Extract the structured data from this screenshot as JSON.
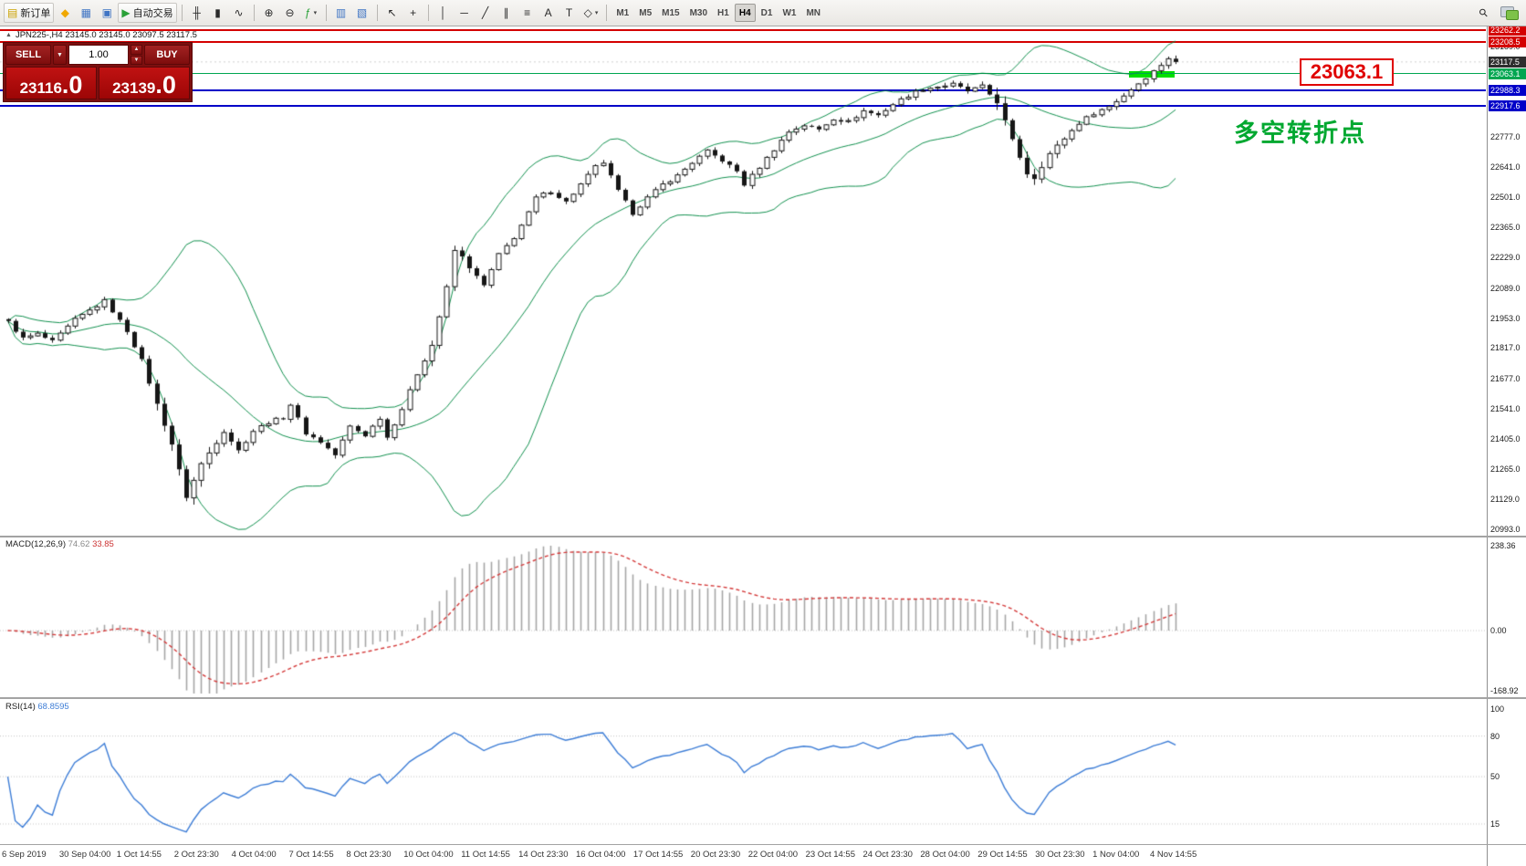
{
  "toolbar": {
    "new_order_label": "新订单",
    "autotrading_label": "自动交易",
    "active_timeframe": "H4",
    "timeframes": [
      "M1",
      "M5",
      "M15",
      "M30",
      "H1",
      "H4",
      "D1",
      "W1",
      "MN"
    ],
    "buttons": [
      {
        "name": "new-order-button",
        "icon": "new-order-icon",
        "glyph": "▤",
        "glyph_color": "#caa200",
        "label": "新订单"
      },
      {
        "name": "mql5-community-button",
        "icon": "mql5-icon",
        "glyph": "◆",
        "glyph_color": "#f0a800"
      },
      {
        "name": "market-watch-button",
        "icon": "market-watch-icon",
        "glyph": "▦",
        "glyph_color": "#3f74c4"
      },
      {
        "name": "data-window-button",
        "icon": "data-window-icon",
        "glyph": "▣",
        "glyph_color": "#3f74c4"
      },
      {
        "name": "autotrading-button",
        "icon": "autotrading-play-icon",
        "glyph": "▶",
        "glyph_color": "#2aa038",
        "label": "自动交易"
      },
      {
        "sep": true
      },
      {
        "name": "bar-chart-button",
        "icon": "bar-chart-icon",
        "glyph": "╫",
        "glyph_color": "#2a2a2a"
      },
      {
        "name": "candlestick-chart-button",
        "icon": "candlestick-icon",
        "glyph": "▮",
        "glyph_color": "#2a2a2a"
      },
      {
        "name": "line-chart-button",
        "icon": "line-chart-icon",
        "glyph": "∿",
        "glyph_color": "#2a2a2a"
      },
      {
        "sep": true
      },
      {
        "name": "zoom-in-button",
        "icon": "zoom-in-icon",
        "glyph": "⊕",
        "glyph_color": "#2a2a2a"
      },
      {
        "name": "zoom-out-button",
        "icon": "zoom-out-icon",
        "glyph": "⊖",
        "glyph_color": "#2a2a2a"
      },
      {
        "name": "indicators-button",
        "icon": "indicators-icon",
        "glyph": "ƒ",
        "glyph_color": "#2aa038",
        "arrow": true
      },
      {
        "sep": true
      },
      {
        "name": "tile-windows-button",
        "icon": "tile-windows-icon",
        "glyph": "▥",
        "glyph_color": "#3f74c4"
      },
      {
        "name": "cascade-windows-button",
        "icon": "cascade-windows-icon",
        "glyph": "▧",
        "glyph_color": "#3f74c4"
      },
      {
        "sep": true
      },
      {
        "name": "cursor-button",
        "icon": "cursor-icon",
        "glyph": "↖",
        "glyph_color": "#2a2a2a"
      },
      {
        "name": "crosshair-button",
        "icon": "crosshair-icon",
        "glyph": "+",
        "glyph_color": "#2a2a2a"
      },
      {
        "sep": true
      },
      {
        "name": "vertical-line-button",
        "icon": "vertical-line-icon",
        "glyph": "│",
        "glyph_color": "#2a2a2a"
      },
      {
        "name": "horizontal-line-button",
        "icon": "horizontal-line-icon",
        "glyph": "─",
        "glyph_color": "#2a2a2a"
      },
      {
        "name": "trendline-button",
        "icon": "trendline-icon",
        "glyph": "╱",
        "glyph_color": "#2a2a2a"
      },
      {
        "name": "channel-button",
        "icon": "channel-icon",
        "glyph": "∥",
        "glyph_color": "#2a2a2a"
      },
      {
        "name": "fibonacci-button",
        "icon": "fibonacci-icon",
        "glyph": "≡",
        "glyph_color": "#2a2a2a"
      },
      {
        "name": "text-button",
        "icon": "text-icon",
        "glyph": "A",
        "glyph_color": "#2a2a2a"
      },
      {
        "name": "label-button",
        "icon": "label-icon",
        "glyph": "T",
        "glyph_color": "#2a2a2a"
      },
      {
        "name": "shapes-button",
        "icon": "shapes-icon",
        "glyph": "◇",
        "glyph_color": "#2a2a2a",
        "arrow": true
      },
      {
        "sep": true
      },
      {
        "tf": "M1"
      },
      {
        "tf": "M5"
      },
      {
        "tf": "M15"
      },
      {
        "tf": "M30"
      },
      {
        "tf": "H1"
      },
      {
        "tf": "H4"
      },
      {
        "tf": "D1"
      },
      {
        "tf": "W1"
      },
      {
        "tf": "MN"
      }
    ],
    "right_buttons": [
      {
        "name": "search-button",
        "icon": "search-icon",
        "glyph": "⚲",
        "glyph_color": "#2a2a2a",
        "rot": true
      },
      {
        "name": "chat-button",
        "icon": "chat-icon",
        "type": "chat"
      }
    ]
  },
  "symbol_header": {
    "text": "JPN225-,H4  23145.0 23145.0 23097.5 23117.5"
  },
  "trade_panel": {
    "sell_label": "SELL",
    "buy_label": "BUY",
    "volume": "1.00",
    "sell_price_main": "23116",
    "sell_price_pips": ".0",
    "buy_price_main": "23139",
    "buy_price_pips": ".0"
  },
  "annotations": {
    "price_callout": "23063.1",
    "callout_color": "#e00000",
    "note_text": "多空转折点",
    "note_color": "#00a830"
  },
  "price_scale": {
    "top_price": 23262.2,
    "bottom_price": 20993.0,
    "labels": [
      {
        "price": 23189.0,
        "text": "23189.0",
        "style": "plain"
      },
      {
        "price": 22777.0,
        "text": "22777.0",
        "style": "plain"
      },
      {
        "price": 22641.0,
        "text": "22641.0",
        "style": "plain"
      },
      {
        "price": 22501.0,
        "text": "22501.0",
        "style": "plain"
      },
      {
        "price": 22365.0,
        "text": "22365.0",
        "style": "plain"
      },
      {
        "price": 22229.0,
        "text": "22229.0",
        "style": "plain"
      },
      {
        "price": 22089.0,
        "text": "22089.0",
        "style": "plain"
      },
      {
        "price": 21953.0,
        "text": "21953.0",
        "style": "plain"
      },
      {
        "price": 21817.0,
        "text": "21817.0",
        "style": "plain"
      },
      {
        "price": 21677.0,
        "text": "21677.0",
        "style": "plain"
      },
      {
        "price": 21541.0,
        "text": "21541.0",
        "style": "plain"
      },
      {
        "price": 21405.0,
        "text": "21405.0",
        "style": "plain"
      },
      {
        "price": 21265.0,
        "text": "21265.0",
        "style": "plain"
      },
      {
        "price": 21129.0,
        "text": "21129.0",
        "style": "plain"
      },
      {
        "price": 20993.0,
        "text": "20993.0",
        "style": "plain"
      },
      {
        "price": 23262.2,
        "text": "23262.2",
        "style": "red"
      },
      {
        "price": 23208.5,
        "text": "23208.5",
        "style": "red"
      },
      {
        "price": 23117.5,
        "text": "23117.5",
        "style": "current"
      },
      {
        "price": 23063.1,
        "text": "23063.1",
        "style": "green"
      },
      {
        "price": 22988.3,
        "text": "22988.3",
        "style": "blue"
      },
      {
        "price": 22917.6,
        "text": "22917.6",
        "style": "blue"
      }
    ]
  },
  "horizontal_lines": [
    {
      "price": 23262.2,
      "color": "#d40000",
      "weight": 2
    },
    {
      "price": 23208.5,
      "color": "#d40000",
      "weight": 2
    },
    {
      "price": 23063.1,
      "color": "#00a651",
      "weight": 1
    },
    {
      "price": 22988.3,
      "color": "#0000c8",
      "weight": 2
    },
    {
      "price": 22917.6,
      "color": "#0000c8",
      "weight": 2
    }
  ],
  "highlight_segment": {
    "price": 23063.1,
    "color": "#00e000"
  },
  "macd_panel": {
    "label": "MACD(12,26,9)",
    "value_main": "74.62",
    "value_signal": "33.85",
    "scale_items": [
      {
        "text": "238.36",
        "value": 238.36
      },
      {
        "text": "0.00",
        "value": 0
      },
      {
        "text": "-168.92",
        "value": -168.92
      }
    ]
  },
  "rsi_panel": {
    "label": "RSI(14)",
    "value": "68.8595",
    "levels": [
      80,
      50,
      15
    ],
    "scale_items": [
      {
        "text": "100",
        "value": 100
      },
      {
        "text": "80",
        "value": 80
      },
      {
        "text": "50",
        "value": 50
      },
      {
        "text": "15",
        "value": 15
      }
    ]
  },
  "time_axis": [
    "6 Sep 2019",
    "30 Sep 04:00",
    "1 Oct 14:55",
    "2 Oct 23:30",
    "4 Oct 04:00",
    "7 Oct 14:55",
    "8 Oct 23:30",
    "10 Oct 04:00",
    "11 Oct 14:55",
    "14 Oct 23:30",
    "16 Oct 04:00",
    "17 Oct 14:55",
    "20 Oct 23:30",
    "22 Oct 04:00",
    "23 Oct 14:55",
    "24 Oct 23:30",
    "28 Oct 04:00",
    "29 Oct 14:55",
    "30 Oct 23:30",
    "1 Nov 04:00",
    "4 Nov 14:55"
  ],
  "colors": {
    "candle": "#161616",
    "bollinger": "#11904e",
    "macd_hist": "#a6a6a6",
    "macd_signal": "#d43b3b",
    "rsi_line": "#3d7dd6",
    "level_dots": "#c4c4c4",
    "current_price_dash": "#cfcfcf"
  },
  "chart_data": {
    "type": "candlestick",
    "symbol": "JPN225-",
    "timeframe": "H4",
    "ohlc_display": {
      "open": 23145.0,
      "high": 23145.0,
      "low": 23097.5,
      "close": 23117.5
    },
    "y_range": [
      20993.0,
      23262.2
    ],
    "candle_count": 158,
    "close_anchors": [
      [
        0,
        21935
      ],
      [
        2,
        21860
      ],
      [
        4,
        21880
      ],
      [
        6,
        21845
      ],
      [
        9,
        21945
      ],
      [
        13,
        22030
      ],
      [
        16,
        21895
      ],
      [
        18,
        21760
      ],
      [
        20,
        21560
      ],
      [
        22,
        21380
      ],
      [
        24,
        21140
      ],
      [
        26,
        21290
      ],
      [
        29,
        21440
      ],
      [
        31,
        21350
      ],
      [
        33,
        21440
      ],
      [
        35,
        21480
      ],
      [
        37,
        21500
      ],
      [
        38,
        21560
      ],
      [
        40,
        21430
      ],
      [
        42,
        21390
      ],
      [
        44,
        21330
      ],
      [
        46,
        21460
      ],
      [
        48,
        21420
      ],
      [
        50,
        21500
      ],
      [
        51,
        21410
      ],
      [
        53,
        21540
      ],
      [
        55,
        21700
      ],
      [
        57,
        21830
      ],
      [
        59,
        22090
      ],
      [
        60,
        22260
      ],
      [
        61,
        22230
      ],
      [
        63,
        22140
      ],
      [
        64,
        22100
      ],
      [
        66,
        22240
      ],
      [
        68,
        22320
      ],
      [
        70,
        22430
      ],
      [
        71,
        22500
      ],
      [
        73,
        22530
      ],
      [
        75,
        22480
      ],
      [
        77,
        22560
      ],
      [
        79,
        22640
      ],
      [
        80,
        22660
      ],
      [
        82,
        22530
      ],
      [
        84,
        22430
      ],
      [
        86,
        22500
      ],
      [
        88,
        22560
      ],
      [
        90,
        22600
      ],
      [
        92,
        22660
      ],
      [
        94,
        22710
      ],
      [
        96,
        22670
      ],
      [
        98,
        22620
      ],
      [
        99,
        22560
      ],
      [
        101,
        22640
      ],
      [
        103,
        22720
      ],
      [
        105,
        22800
      ],
      [
        107,
        22830
      ],
      [
        109,
        22810
      ],
      [
        111,
        22860
      ],
      [
        113,
        22845
      ],
      [
        115,
        22895
      ],
      [
        117,
        22875
      ],
      [
        119,
        22925
      ],
      [
        121,
        22965
      ],
      [
        123,
        22995
      ],
      [
        125,
        23005
      ],
      [
        127,
        23015
      ],
      [
        129,
        22985
      ],
      [
        131,
        23005
      ],
      [
        133,
        22935
      ],
      [
        135,
        22760
      ],
      [
        137,
        22610
      ],
      [
        138,
        22590
      ],
      [
        140,
        22700
      ],
      [
        142,
        22770
      ],
      [
        144,
        22840
      ],
      [
        146,
        22885
      ],
      [
        148,
        22915
      ],
      [
        150,
        22965
      ],
      [
        152,
        23020
      ],
      [
        154,
        23075
      ],
      [
        156,
        23135
      ],
      [
        157,
        23117.5
      ]
    ],
    "indicators": [
      {
        "name": "Bollinger Bands",
        "period": 20,
        "deviation": 2
      },
      {
        "name": "MACD",
        "params": [
          12,
          26,
          9
        ],
        "current": [
          74.62,
          33.85
        ]
      },
      {
        "name": "RSI",
        "period": 14,
        "current": 68.8595
      }
    ]
  }
}
